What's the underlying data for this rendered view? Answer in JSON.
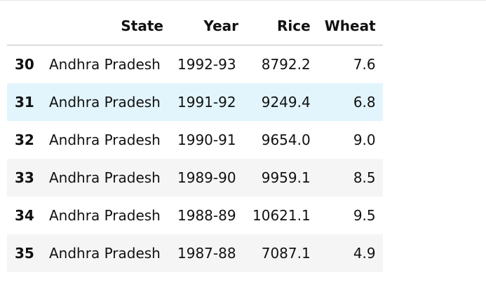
{
  "dataframe": {
    "columns": {
      "index": "",
      "state": "State",
      "year": "Year",
      "rice": "Rice",
      "wheat": "Wheat"
    },
    "rows": [
      {
        "index": "30",
        "state": "Andhra Pradesh",
        "year": "1992-93",
        "rice": "8792.2",
        "wheat": "7.6"
      },
      {
        "index": "31",
        "state": "Andhra Pradesh",
        "year": "1991-92",
        "rice": "9249.4",
        "wheat": "6.8"
      },
      {
        "index": "32",
        "state": "Andhra Pradesh",
        "year": "1990-91",
        "rice": "9654.0",
        "wheat": "9.0"
      },
      {
        "index": "33",
        "state": "Andhra Pradesh",
        "year": "1989-90",
        "rice": "9959.1",
        "wheat": "8.5"
      },
      {
        "index": "34",
        "state": "Andhra Pradesh",
        "year": "1988-89",
        "rice": "10621.1",
        "wheat": "9.5"
      },
      {
        "index": "35",
        "state": "Andhra Pradesh",
        "year": "1987-88",
        "rice": "7087.1",
        "wheat": "4.9"
      }
    ],
    "highlight_color": "#e2f5fc",
    "stripe_color": "#f5f5f5"
  }
}
